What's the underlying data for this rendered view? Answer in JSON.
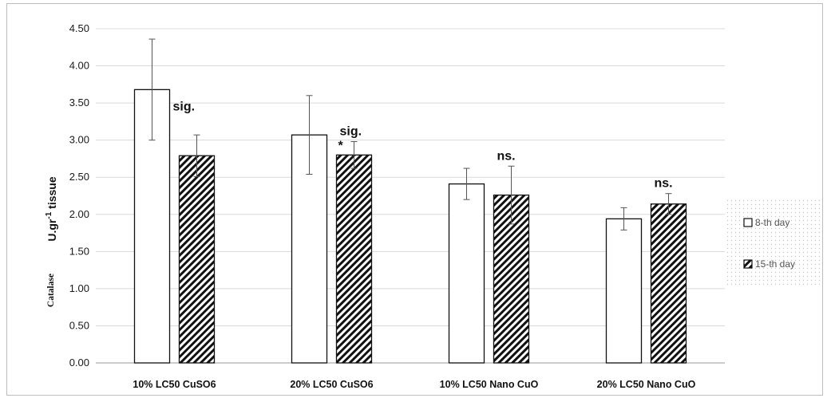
{
  "chart_data": {
    "type": "bar",
    "title": "",
    "ylabel_prefix": "Catalase",
    "ylabel_unit": "U.gr",
    "ylabel_sup": "-1",
    "ylabel_suffix": " tissue",
    "xlabel": "",
    "ylim": [
      0,
      4.5
    ],
    "yticks": [
      "0.00",
      "0.50",
      "1.00",
      "1.50",
      "2.00",
      "2.50",
      "3.00",
      "3.50",
      "4.00",
      "4.50"
    ],
    "categories": [
      "10% LC50 CuSO6",
      "20% LC50 CuSO6",
      "10% LC50 Nano CuO",
      "20% LC50 Nano CuO"
    ],
    "series": [
      {
        "name": "8-th day",
        "values": [
          3.68,
          3.07,
          2.41,
          1.94
        ],
        "errors": [
          0.68,
          0.53,
          0.21,
          0.15
        ],
        "fill": "#ffffff"
      },
      {
        "name": "15-th day",
        "values": [
          2.79,
          2.8,
          2.26,
          2.14
        ],
        "errors": [
          0.28,
          0.18,
          0.39,
          0.14
        ],
        "fill": "hatch"
      }
    ],
    "annotations": [
      "sig.",
      "sig.",
      "ns.",
      "ns."
    ],
    "asterisk": "*",
    "grid": true,
    "legend_position": "right"
  }
}
